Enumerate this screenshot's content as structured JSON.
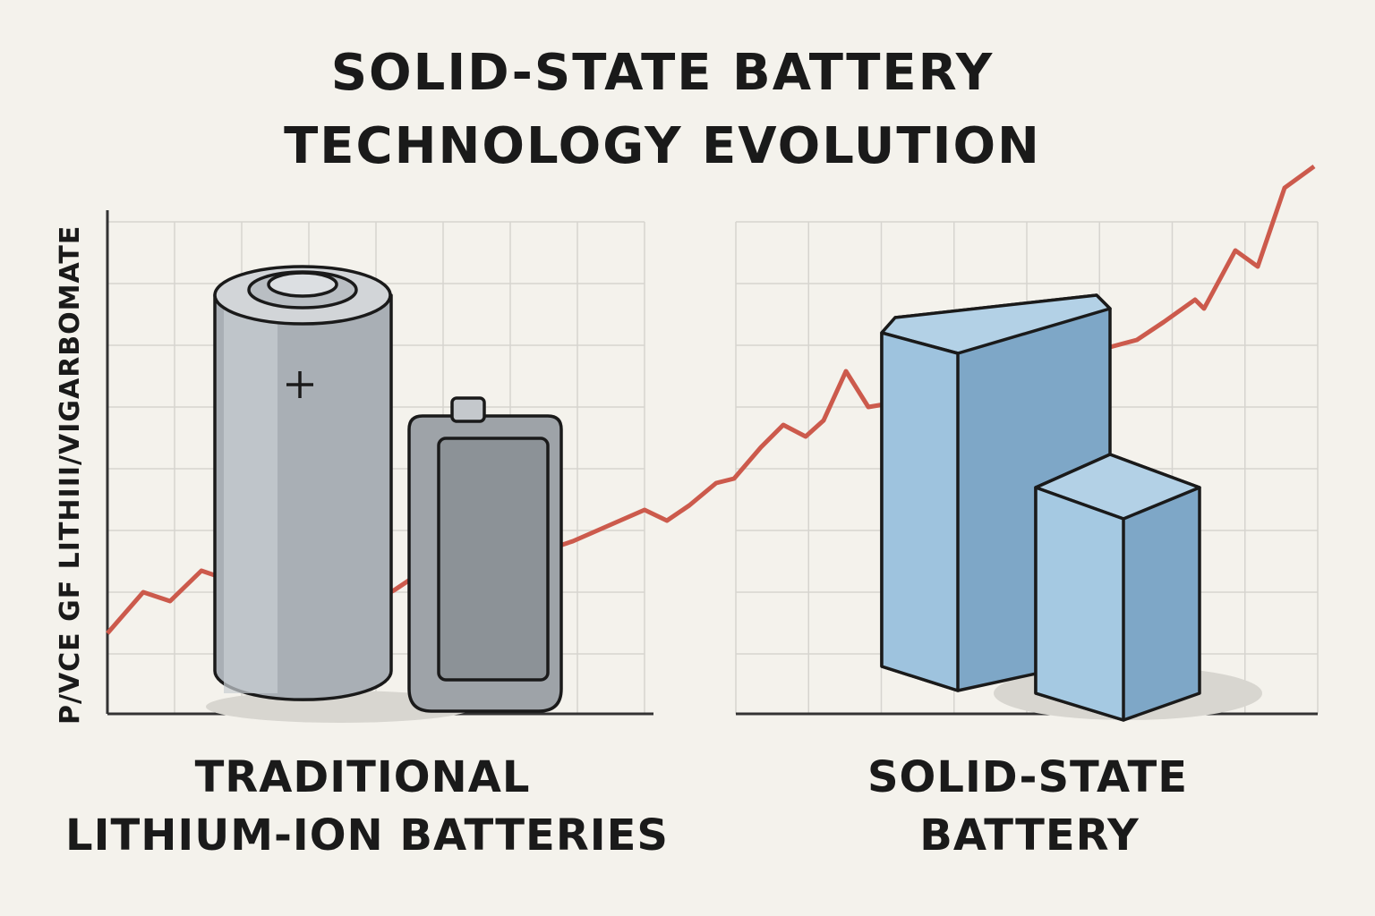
{
  "title": [
    "SOLID-STATE BATTERY",
    "TECHNOLOGY EVOLUTION"
  ],
  "y_axis_label": "P/VCE GF LITHIII/VIGARBOMATE",
  "panels": [
    {
      "label": [
        "TRADITIONAL",
        "LITHIUM-ION BATTERIES"
      ]
    },
    {
      "label": [
        "SOLID-STATE",
        "BATTERY"
      ]
    }
  ]
}
